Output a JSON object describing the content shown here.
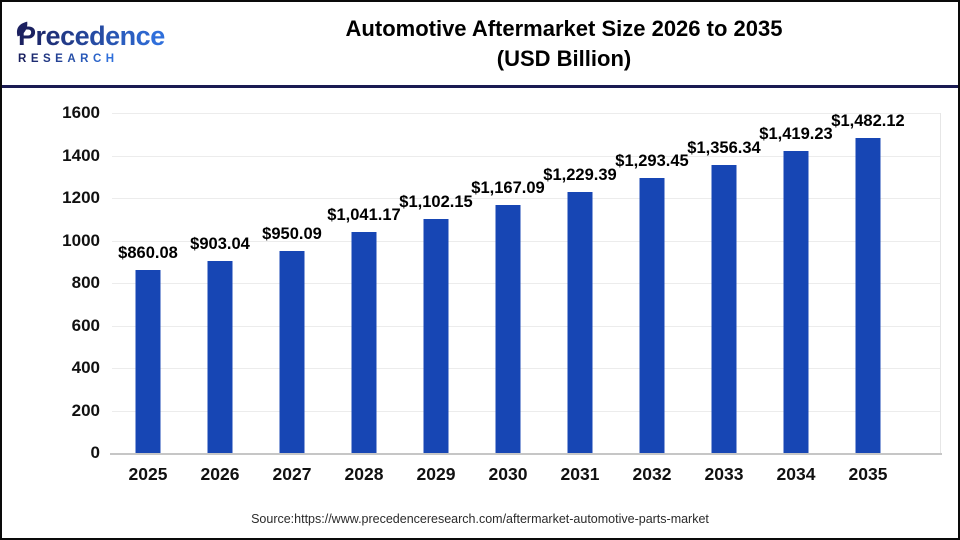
{
  "header": {
    "logo": {
      "line1": "Precedence",
      "line2": "RESEARCH"
    },
    "title": "Automotive Aftermarket Size 2026 to 2035",
    "subtitle": "(USD Billion)"
  },
  "chart_data": {
    "type": "bar",
    "title": "Automotive Aftermarket Size 2026 to 2035 (USD Billion)",
    "categories": [
      "2025",
      "2026",
      "2027",
      "2028",
      "2029",
      "2030",
      "2031",
      "2032",
      "2033",
      "2034",
      "2035"
    ],
    "values": [
      860.08,
      903.04,
      950.09,
      1041.17,
      1102.15,
      1167.09,
      1229.39,
      1293.45,
      1356.34,
      1419.23,
      1482.12
    ],
    "labels": [
      "$860.08",
      "$903.04",
      "$950.09",
      "$1,041.17",
      "$1,102.15",
      "$1,167.09",
      "$1,229.39",
      "$1,293.45",
      "$1,356.34",
      "$1,419.23",
      "$1,482.12"
    ],
    "xlabel": "",
    "ylabel": "",
    "ylim": [
      0,
      1600
    ],
    "yticks": [
      0,
      200,
      400,
      600,
      800,
      1000,
      1200,
      1400,
      1600
    ],
    "grid": true,
    "legend": false,
    "bar_color": "#1746b4"
  },
  "footer": {
    "source": "Source:https://www.precedenceresearch.com/aftermarket-automotive-parts-market"
  },
  "colors": {
    "logo_dark": "#1b2160",
    "logo_blue": "#2f6fdb",
    "divider_navy": "#1a1b52",
    "bar_blue": "#1746b4",
    "gridline": "#ececec",
    "baseline": "#c6c6c6",
    "title_text": "#000000",
    "source_text": "#2b2b2b"
  }
}
